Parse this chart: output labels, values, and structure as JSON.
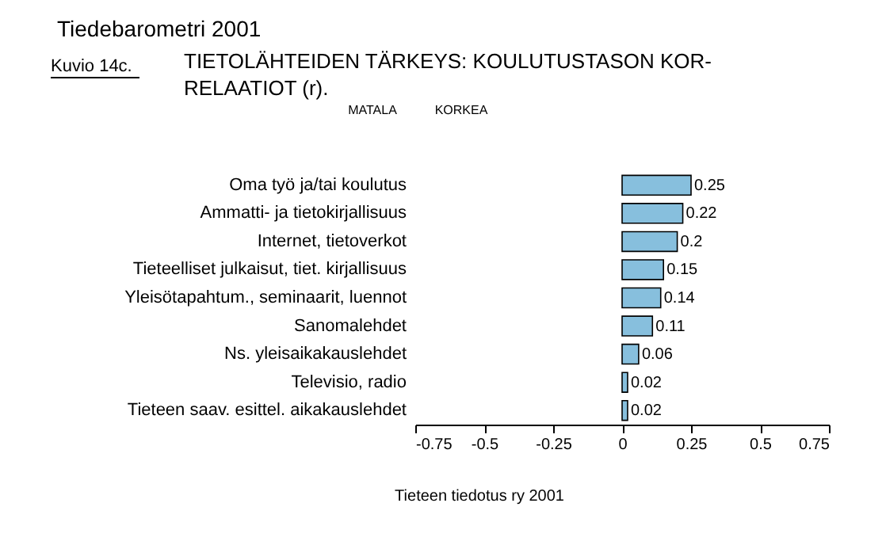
{
  "chart_data": {
    "type": "bar",
    "orientation": "horizontal",
    "title": "Tiedebarometri 2001",
    "subtitle": "TIETOLÄHTEIDEN TÄRKEYS: KOULUTUSTASON KOR-\nRELAATIOT (r).",
    "categories": [
      "Oma työ ja/tai koulutus",
      "Ammatti- ja tietokirjallisuus",
      "Internet, tietoverkot",
      "Tieteelliset julkaisut, tiet. kirjallisuus",
      "Yleisötapahtum., seminaarit, luennot",
      "Sanomalehdet",
      "Ns. yleisaikakauslehdet",
      "Televisio, radio",
      "Tieteen saav. esittel. aikakauslehdet"
    ],
    "values": [
      0.25,
      0.22,
      0.2,
      0.15,
      0.14,
      0.11,
      0.06,
      0.02,
      0.02
    ],
    "color": "#87bfdd",
    "data_labels": true,
    "xlim": [
      -0.75,
      0.75
    ],
    "xticks": [
      -0.75,
      -0.5,
      -0.25,
      0,
      0.25,
      0.5,
      0.75
    ],
    "grid": false,
    "annotations": [
      "Kuvio 14c.",
      "MATALA",
      "KORKEA",
      "Tieteen tiedotus ry 2001"
    ]
  }
}
